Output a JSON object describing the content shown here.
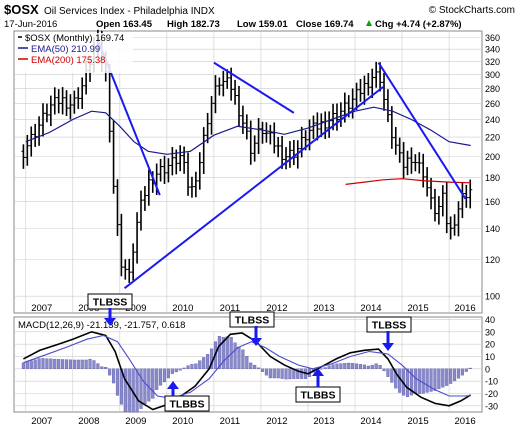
{
  "header": {
    "symbol": "$OSX",
    "name": "Oil Services Index - Philadelphia INDX",
    "brand": "© StockCharts.com",
    "date": "17-Jun-2016",
    "open": "Open 163.45",
    "high": "High 182.73",
    "low": "Low 159.01",
    "close": "Close 169.74",
    "chg": "Chg +4.74 (+2.87%)",
    "chg_icon": "up-triangle"
  },
  "legend": {
    "price": "$OSX (Monthly) 169.74",
    "ema50": "EMA(50) 210.99",
    "ema200": "EMA(200) 175.38"
  },
  "macd_legend": "MACD(12,26,9) -21.139, -21.757, 0.618",
  "annotations": [
    "TLBSS",
    "TLBBS",
    "TLBSS",
    "TLBBS",
    "TLBSS"
  ],
  "colors": {
    "price_bars": "#000000",
    "ema50": "#1a1a8c",
    "ema200": "#cc0000",
    "trendline": "#1a1af0",
    "histogram": "#8888cc",
    "macd_line": "#000000",
    "signal_line": "#4a4acc",
    "grid": "#cccccc",
    "annotation_arrow": "#1a1af0"
  },
  "chart_data": [
    {
      "type": "ohlc-bar",
      "title": "$OSX Oil Services Index - Philadelphia INDX",
      "x": [
        "2007",
        "2008",
        "2009",
        "2010",
        "2011",
        "2012",
        "2013",
        "2014",
        "2015",
        "2016"
      ],
      "y_ticks": [
        100,
        120,
        140,
        160,
        180,
        200,
        220,
        240,
        260,
        280,
        300,
        320,
        340,
        360
      ],
      "ylim": [
        92,
        372
      ],
      "scale": "log",
      "grid": true,
      "series": [
        {
          "name": "$OSX (Monthly)",
          "close_path": [
            [
              2006.95,
              205
            ],
            [
              2007.25,
              230
            ],
            [
              2007.5,
              255
            ],
            [
              2007.75,
              265
            ],
            [
              2008.0,
              258
            ],
            [
              2008.25,
              290
            ],
            [
              2008.5,
              355
            ],
            [
              2008.7,
              300
            ],
            [
              2008.85,
              180
            ],
            [
              2009.0,
              120
            ],
            [
              2009.2,
              110
            ],
            [
              2009.4,
              150
            ],
            [
              2009.6,
              175
            ],
            [
              2009.8,
              185
            ],
            [
              2010.0,
              190
            ],
            [
              2010.3,
              200
            ],
            [
              2010.5,
              165
            ],
            [
              2010.7,
              195
            ],
            [
              2010.9,
              250
            ],
            [
              2011.1,
              290
            ],
            [
              2011.35,
              285
            ],
            [
              2011.6,
              240
            ],
            [
              2011.8,
              205
            ],
            [
              2012.0,
              230
            ],
            [
              2012.25,
              215
            ],
            [
              2012.5,
              200
            ],
            [
              2012.75,
              205
            ],
            [
              2013.0,
              225
            ],
            [
              2013.3,
              235
            ],
            [
              2013.6,
              245
            ],
            [
              2013.9,
              260
            ],
            [
              2014.1,
              275
            ],
            [
              2014.4,
              300
            ],
            [
              2014.55,
              295
            ],
            [
              2014.65,
              250
            ],
            [
              2014.8,
              220
            ],
            [
              2014.9,
              205
            ],
            [
              2015.0,
              190
            ],
            [
              2015.2,
              200
            ],
            [
              2015.45,
              185
            ],
            [
              2015.6,
              160
            ],
            [
              2015.75,
              150
            ],
            [
              2015.85,
              165
            ],
            [
              2016.0,
              135
            ],
            [
              2016.15,
              150
            ],
            [
              2016.3,
              165
            ],
            [
              2016.46,
              169.74
            ]
          ]
        },
        {
          "name": "EMA(50)",
          "path": [
            [
              2007.0,
              215
            ],
            [
              2007.5,
              225
            ],
            [
              2008.0,
              240
            ],
            [
              2008.4,
              250
            ],
            [
              2008.7,
              248
            ],
            [
              2009.0,
              232
            ],
            [
              2009.3,
              215
            ],
            [
              2009.6,
              205
            ],
            [
              2010.0,
              202
            ],
            [
              2010.5,
              205
            ],
            [
              2011.0,
              222
            ],
            [
              2011.5,
              232
            ],
            [
              2012.0,
              228
            ],
            [
              2012.5,
              223
            ],
            [
              2013.0,
              230
            ],
            [
              2013.5,
              240
            ],
            [
              2014.0,
              250
            ],
            [
              2014.4,
              255
            ],
            [
              2014.8,
              250
            ],
            [
              2015.2,
              240
            ],
            [
              2015.6,
              228
            ],
            [
              2016.0,
              215
            ],
            [
              2016.46,
              211
            ]
          ]
        },
        {
          "name": "EMA(200)",
          "path": [
            [
              2013.8,
              174
            ],
            [
              2014.2,
              176
            ],
            [
              2014.6,
              178
            ],
            [
              2015.0,
              179
            ],
            [
              2015.5,
              177
            ],
            [
              2016.0,
              176
            ],
            [
              2016.46,
              175.38
            ]
          ]
        }
      ],
      "trendlines": [
        {
          "from": [
            2008.55,
            352
          ],
          "to": [
            2009.85,
            165
          ]
        },
        {
          "from": [
            2009.1,
            104
          ],
          "to": [
            2014.6,
            282
          ]
        },
        {
          "from": [
            2011.0,
            318
          ],
          "to": [
            2012.7,
            248
          ]
        },
        {
          "from": [
            2014.5,
            318
          ],
          "to": [
            2016.35,
            162
          ]
        }
      ]
    },
    {
      "type": "macd",
      "title": "MACD(12,26,9)",
      "x": [
        "2007",
        "2008",
        "2009",
        "2010",
        "2011",
        "2012",
        "2013",
        "2014",
        "2015",
        "2016"
      ],
      "y_ticks": [
        -30,
        -20,
        -10,
        0,
        10,
        20,
        30,
        40
      ],
      "ylim": [
        -35,
        42
      ],
      "grid": true,
      "series": [
        {
          "name": "MACD",
          "values": [
            [
              2006.95,
              8
            ],
            [
              2007.3,
              15
            ],
            [
              2007.7,
              20
            ],
            [
              2008.0,
              24
            ],
            [
              2008.4,
              30
            ],
            [
              2008.7,
              27
            ],
            [
              2008.9,
              14
            ],
            [
              2009.1,
              -8
            ],
            [
              2009.4,
              -26
            ],
            [
              2009.7,
              -33
            ],
            [
              2010.0,
              -29
            ],
            [
              2010.3,
              -22
            ],
            [
              2010.6,
              -14
            ],
            [
              2010.9,
              0
            ],
            [
              2011.1,
              18
            ],
            [
              2011.35,
              28
            ],
            [
              2011.6,
              29
            ],
            [
              2011.9,
              22
            ],
            [
              2012.2,
              10
            ],
            [
              2012.5,
              3
            ],
            [
              2012.8,
              -2
            ],
            [
              2013.0,
              -4
            ],
            [
              2013.3,
              2
            ],
            [
              2013.6,
              8
            ],
            [
              2013.9,
              13
            ],
            [
              2014.2,
              15
            ],
            [
              2014.5,
              16
            ],
            [
              2014.7,
              8
            ],
            [
              2014.9,
              -5
            ],
            [
              2015.1,
              -15
            ],
            [
              2015.4,
              -23
            ],
            [
              2015.7,
              -28
            ],
            [
              2016.0,
              -30
            ],
            [
              2016.25,
              -26
            ],
            [
              2016.46,
              -21.139
            ]
          ]
        },
        {
          "name": "Signal",
          "values": [
            [
              2006.95,
              5
            ],
            [
              2007.4,
              11
            ],
            [
              2007.9,
              18
            ],
            [
              2008.3,
              24
            ],
            [
              2008.65,
              27
            ],
            [
              2008.95,
              22
            ],
            [
              2009.2,
              8
            ],
            [
              2009.5,
              -10
            ],
            [
              2009.8,
              -22
            ],
            [
              2010.1,
              -24
            ],
            [
              2010.5,
              -19
            ],
            [
              2010.9,
              -8
            ],
            [
              2011.2,
              6
            ],
            [
              2011.5,
              17
            ],
            [
              2011.8,
              22
            ],
            [
              2012.1,
              17
            ],
            [
              2012.4,
              10
            ],
            [
              2012.8,
              3
            ],
            [
              2013.1,
              0
            ],
            [
              2013.5,
              4
            ],
            [
              2013.9,
              10
            ],
            [
              2014.3,
              14
            ],
            [
              2014.7,
              12
            ],
            [
              2015.0,
              3
            ],
            [
              2015.3,
              -8
            ],
            [
              2015.7,
              -17
            ],
            [
              2016.0,
              -22
            ],
            [
              2016.3,
              -22
            ],
            [
              2016.46,
              -21.757
            ]
          ]
        }
      ]
    }
  ]
}
